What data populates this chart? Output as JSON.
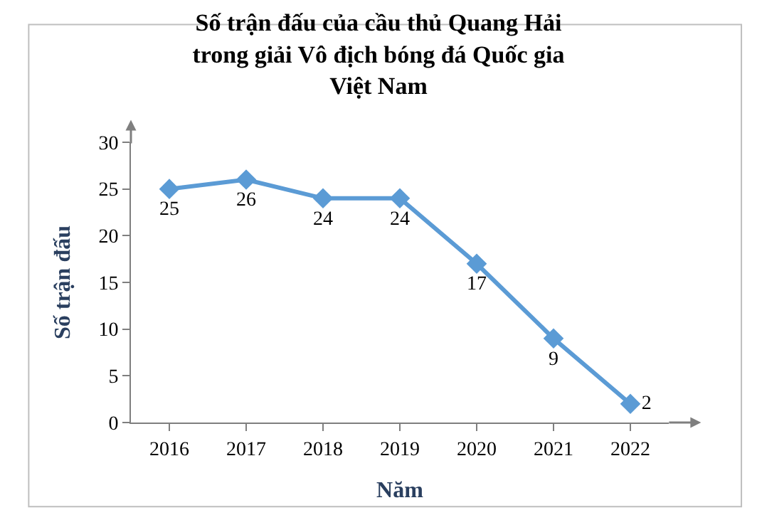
{
  "chart_data": {
    "type": "line",
    "title": "Số trận đấu của cầu thủ Quang Hải trong giải Vô địch bóng đá Quốc gia Việt Nam",
    "xlabel": "Năm",
    "ylabel": "Số trận đấu",
    "categories": [
      "2016",
      "2017",
      "2018",
      "2019",
      "2020",
      "2021",
      "2022"
    ],
    "series": [
      {
        "color": "#5b9bd5",
        "values": [
          25,
          26,
          24,
          24,
          17,
          9,
          2
        ]
      }
    ],
    "ylim": [
      0,
      30
    ],
    "yticks": [
      0,
      5,
      10,
      15,
      20,
      25,
      30
    ],
    "marker": "diamond",
    "line_style": "solid",
    "data_labels": true
  }
}
